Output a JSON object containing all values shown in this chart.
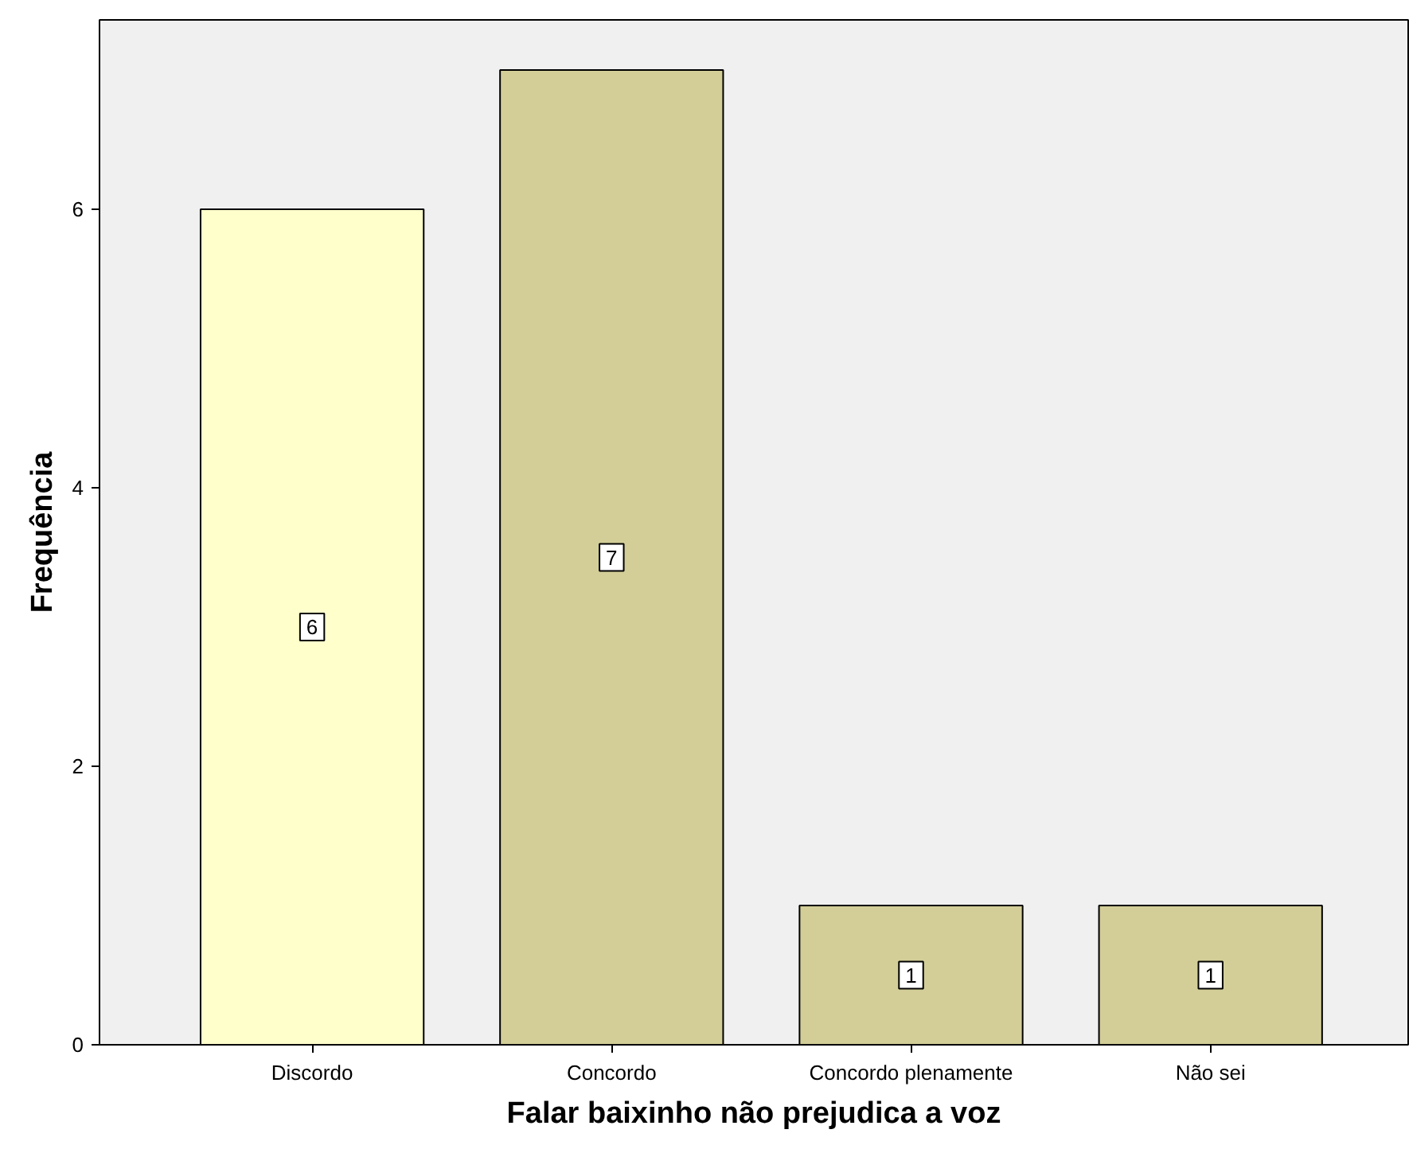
{
  "chart_data": {
    "type": "bar",
    "xlabel": "Falar baixinho não prejudica a voz",
    "ylabel": "Frequência",
    "categories": [
      "Discordo",
      "Concordo",
      "Concordo plenamente",
      "Não sei"
    ],
    "values": [
      6,
      7,
      1,
      1
    ],
    "colors": [
      "#ffffcc",
      "#d3ce98",
      "#d3ce98",
      "#d3ce98"
    ],
    "ylim": [
      0,
      7.36
    ],
    "yticks": [
      0,
      2,
      4,
      6
    ],
    "grid": false,
    "data_labels": true
  }
}
